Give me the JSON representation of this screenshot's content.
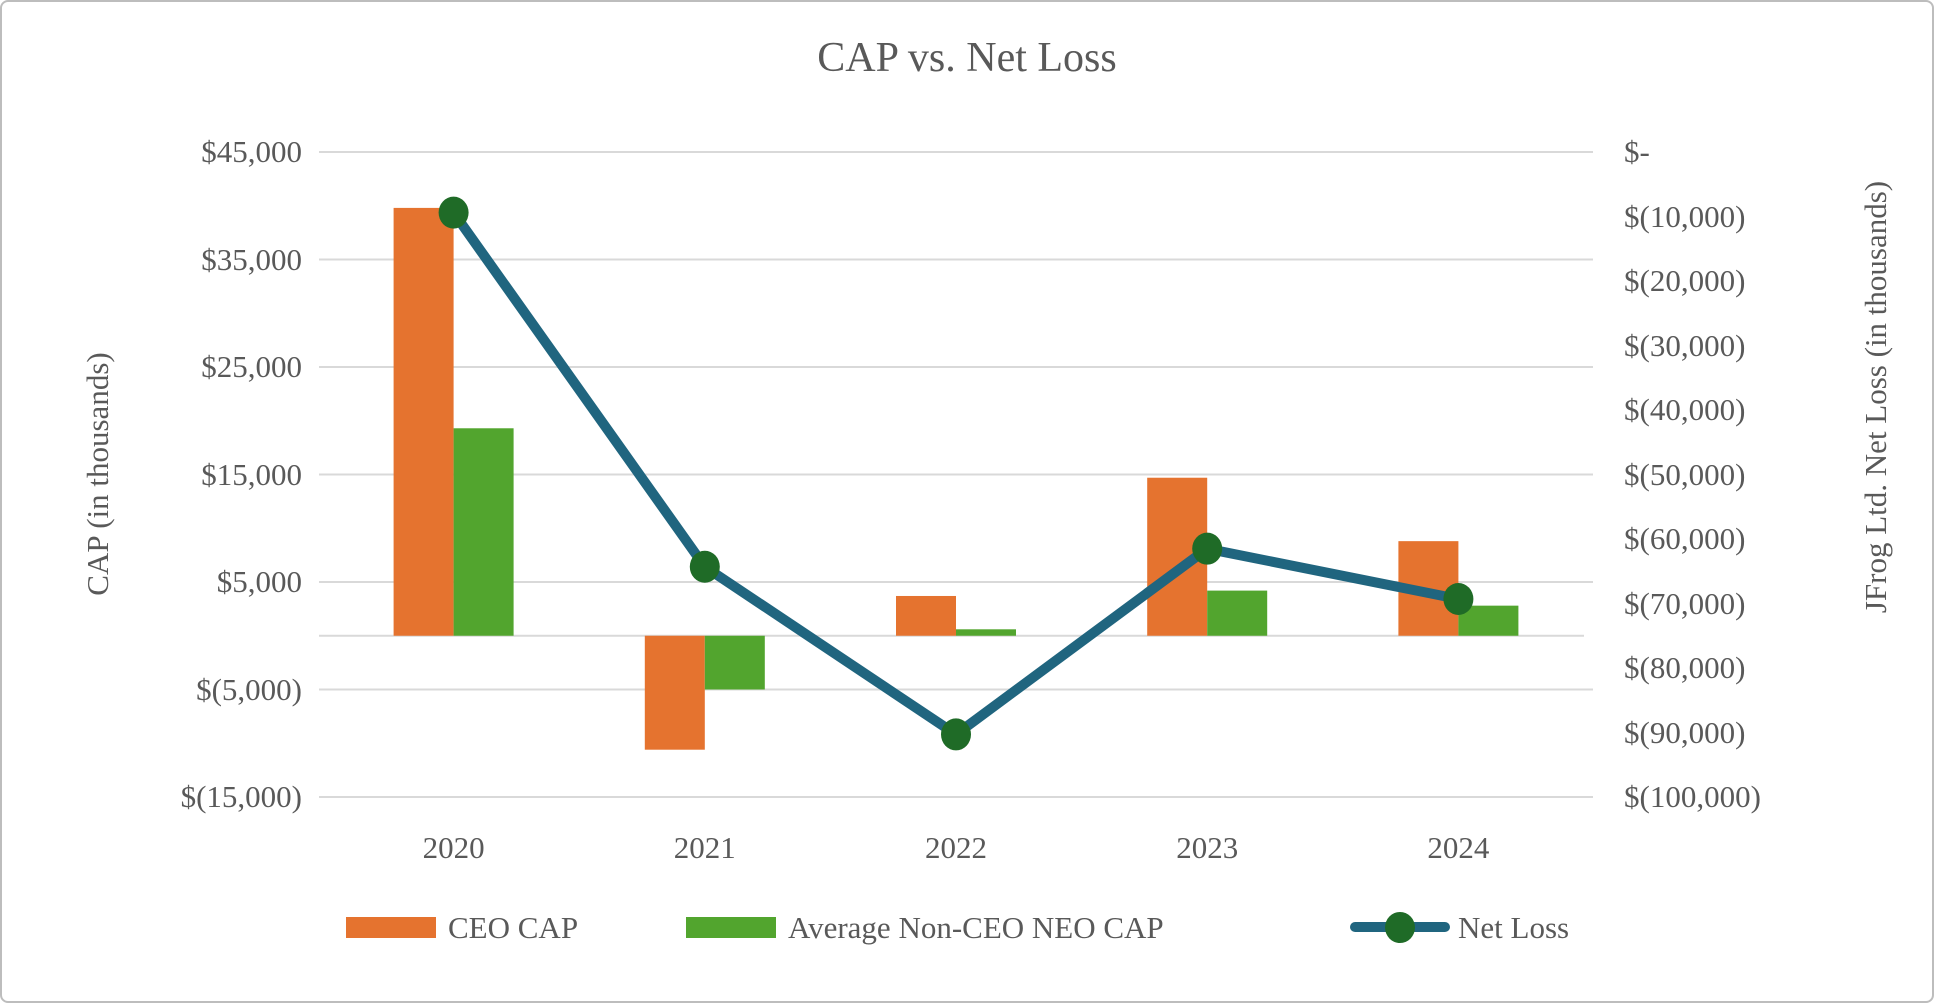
{
  "title": "CAP vs. Net Loss",
  "colors": {
    "ceo_bar": "#E5732F",
    "nonceo_bar": "#52A52E",
    "netloss_line": "#20657F",
    "netloss_marker": "#1F6B27",
    "gridline": "#D9D9D9",
    "text": "#595959",
    "background": "#FFFFFF",
    "border": "#BDBDBD"
  },
  "chart_data": {
    "type": "combo",
    "subtype": "bars-and-line-dual-axis",
    "title": "CAP vs. Net Loss",
    "categories": [
      "2020",
      "2021",
      "2022",
      "2023",
      "2024"
    ],
    "series": [
      {
        "name": "CEO CAP",
        "type": "bar",
        "axis": "left",
        "color": "#E5732F",
        "values": [
          39800,
          -10600,
          3700,
          14700,
          8800
        ]
      },
      {
        "name": "Average Non-CEO NEO CAP",
        "type": "bar",
        "axis": "left",
        "color": "#52A52E",
        "values": [
          19300,
          -5000,
          600,
          4200,
          2800
        ]
      },
      {
        "name": "Net Loss",
        "type": "line",
        "axis": "right",
        "color": "#20657F",
        "marker_color": "#1F6B27",
        "values": [
          -9400,
          -64300,
          -90300,
          -61500,
          -69300
        ]
      }
    ],
    "left_axis": {
      "title": "CAP (in thousands)",
      "min": -15000,
      "max": 45000,
      "tick_values": [
        45000,
        35000,
        25000,
        15000,
        5000,
        -5000,
        -15000
      ],
      "tick_labels": [
        "$45,000",
        "$35,000",
        "$25,000",
        "$15,000",
        "$5,000",
        "$(5,000)",
        "$(15,000)"
      ]
    },
    "right_axis": {
      "title": "JFrog Ltd. Net Loss (in thousands)",
      "min": -100000,
      "max": 0,
      "tick_values": [
        0,
        -10000,
        -20000,
        -30000,
        -40000,
        -50000,
        -60000,
        -70000,
        -80000,
        -90000,
        -100000
      ],
      "tick_labels": [
        "$-",
        "$(10,000)",
        "$(20,000)",
        "$(30,000)",
        "$(40,000)",
        "$(50,000)",
        "$(60,000)",
        "$(70,000)",
        "$(80,000)",
        "$(90,000)",
        "$(100,000)"
      ]
    },
    "grid": true,
    "legend_position": "bottom"
  }
}
